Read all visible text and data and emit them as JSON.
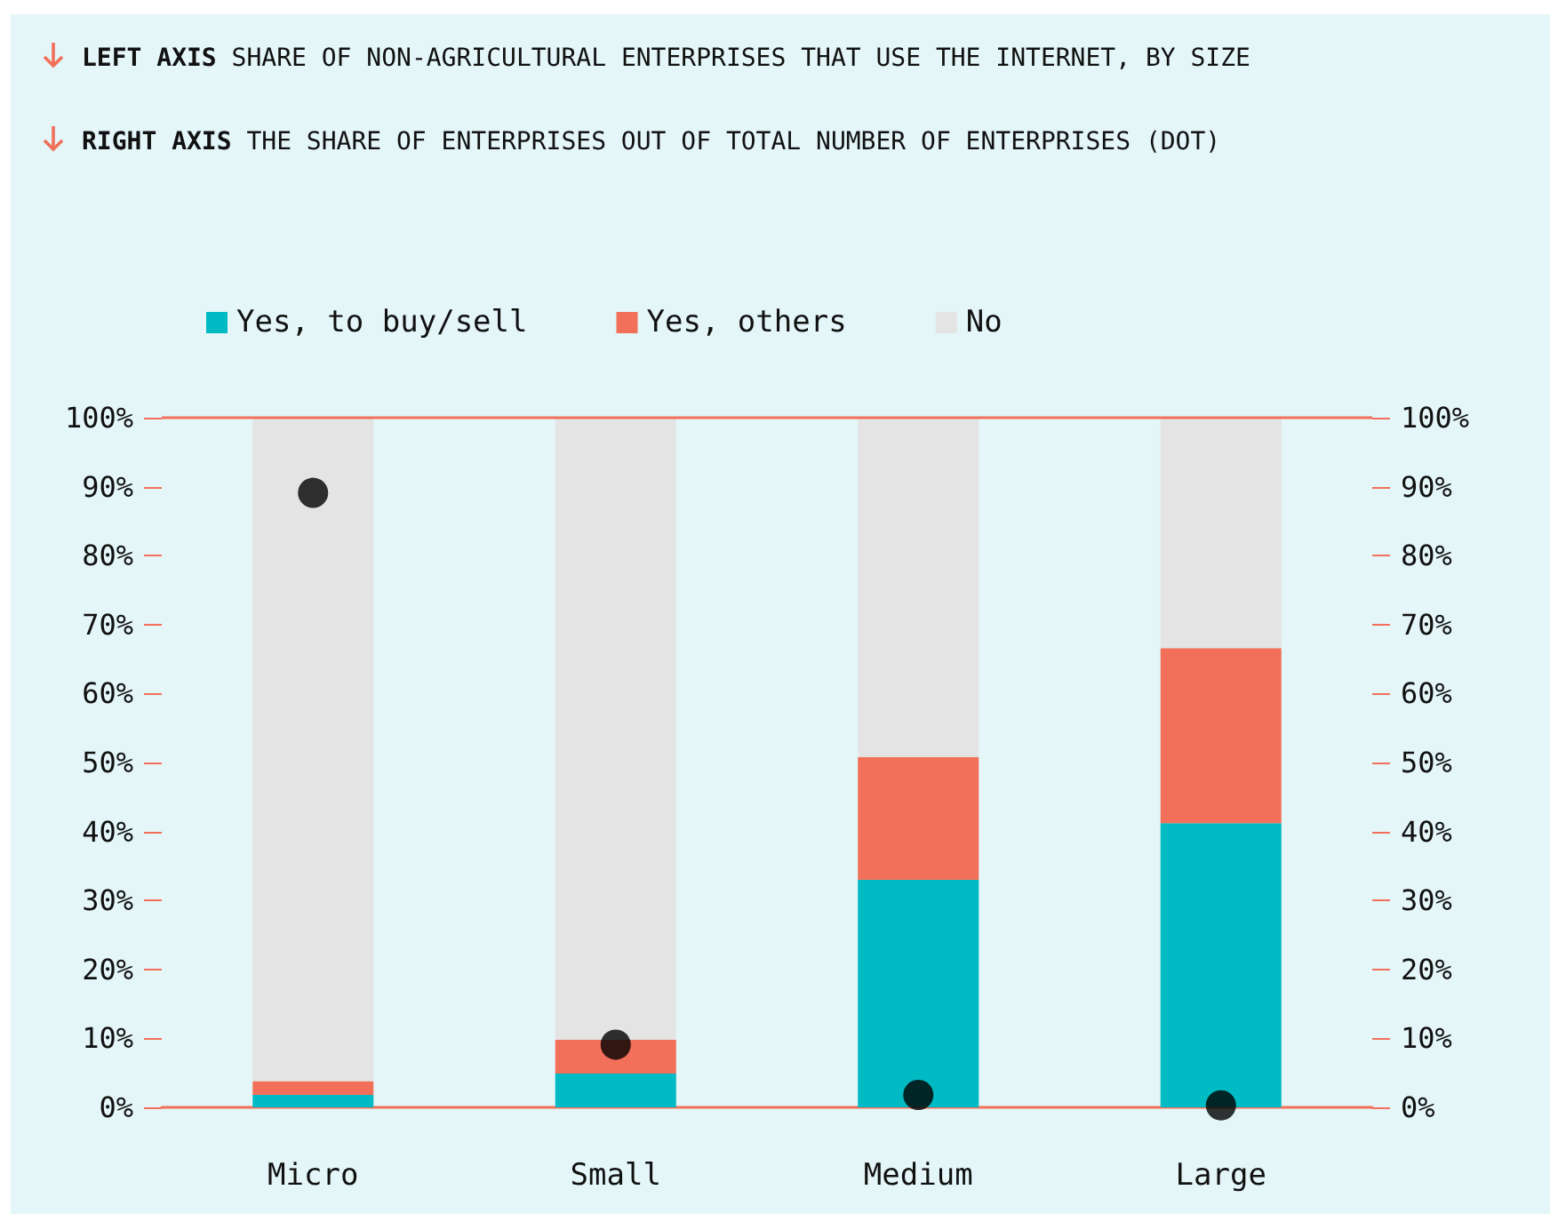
{
  "chart_data": {
    "type": "bar",
    "stacked": true,
    "title": "LEFT AXIS SHARE OF NON-AGRICULTURAL ENTERPRISES THAT USE THE INTERNET, BY SIZE",
    "subtitle": "RIGHT AXIS THE SHARE OF ENTERPRISES OUT OF TOTAL NUMBER OF ENTERPRISES (DOT)",
    "categories": [
      "Micro",
      "Small",
      "Medium",
      "Large"
    ],
    "series": [
      {
        "name": "Yes, to buy/sell",
        "color": "#00bac4",
        "values": [
          1.8,
          4.9,
          33.0,
          41.2
        ]
      },
      {
        "name": "Yes, others",
        "color": "#f2705a",
        "values": [
          2.0,
          4.9,
          17.8,
          25.4
        ]
      },
      {
        "name": "No",
        "color": "#e4e4e4",
        "values": [
          96.2,
          90.2,
          49.2,
          33.4
        ]
      },
      {
        "type": "scatter",
        "axis": "y2",
        "color": "#000000",
        "values": [
          89.1,
          9.1,
          1.8,
          0.3
        ]
      }
    ],
    "ylim": [
      0,
      100
    ],
    "yticks": [
      {
        "value": 0,
        "label": "0%"
      },
      {
        "value": 10,
        "label": "10%"
      },
      {
        "value": 20,
        "label": "20%"
      },
      {
        "value": 30,
        "label": "30%"
      },
      {
        "value": 40,
        "label": "40%"
      },
      {
        "value": 50,
        "label": "50%"
      },
      {
        "value": 60,
        "label": "60%"
      },
      {
        "value": 70,
        "label": "70%"
      },
      {
        "value": 80,
        "label": "80%"
      },
      {
        "value": 90,
        "label": "90%"
      },
      {
        "value": 100,
        "label": "100%"
      }
    ],
    "y2lim": [
      0,
      100
    ],
    "y2ticks": [
      {
        "value": 0,
        "label": "0%"
      },
      {
        "value": 10,
        "label": "10%"
      },
      {
        "value": 20,
        "label": "20%"
      },
      {
        "value": 30,
        "label": "30%"
      },
      {
        "value": 40,
        "label": "40%"
      },
      {
        "value": 50,
        "label": "50%"
      },
      {
        "value": 60,
        "label": "60%"
      },
      {
        "value": 70,
        "label": "70%"
      },
      {
        "value": 80,
        "label": "80%"
      },
      {
        "value": 90,
        "label": "90%"
      },
      {
        "value": 100,
        "label": "100%"
      }
    ],
    "ref_lines": [
      {
        "axis": "y",
        "value": 100,
        "color": "#f2705a"
      }
    ],
    "legend": "top",
    "grid": false,
    "marker": "circle"
  }
}
